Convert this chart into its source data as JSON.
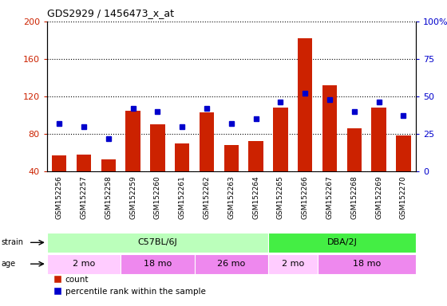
{
  "title": "GDS2929 / 1456473_x_at",
  "samples": [
    "GSM152256",
    "GSM152257",
    "GSM152258",
    "GSM152259",
    "GSM152260",
    "GSM152261",
    "GSM152262",
    "GSM152263",
    "GSM152264",
    "GSM152265",
    "GSM152266",
    "GSM152267",
    "GSM152268",
    "GSM152269",
    "GSM152270"
  ],
  "counts": [
    57,
    58,
    53,
    105,
    90,
    70,
    103,
    68,
    72,
    108,
    182,
    132,
    86,
    108,
    78
  ],
  "percentile_ranks": [
    32,
    30,
    22,
    42,
    40,
    30,
    42,
    32,
    35,
    46,
    52,
    48,
    40,
    46,
    37
  ],
  "ylim_left": [
    40,
    200
  ],
  "ylim_right": [
    0,
    100
  ],
  "yticks_left": [
    40,
    80,
    120,
    160,
    200
  ],
  "yticks_right": [
    0,
    25,
    50,
    75,
    100
  ],
  "bar_color": "#cc2200",
  "marker_color": "#0000cc",
  "strain_groups": [
    {
      "label": "C57BL/6J",
      "start": 0,
      "end": 9,
      "color": "#bbffbb"
    },
    {
      "label": "DBA/2J",
      "start": 9,
      "end": 15,
      "color": "#44ee44"
    }
  ],
  "age_groups": [
    {
      "label": "2 mo",
      "start": 0,
      "end": 3,
      "color": "#ffccff"
    },
    {
      "label": "18 mo",
      "start": 3,
      "end": 6,
      "color": "#ee88ee"
    },
    {
      "label": "26 mo",
      "start": 6,
      "end": 9,
      "color": "#ee88ee"
    },
    {
      "label": "2 mo",
      "start": 9,
      "end": 11,
      "color": "#ffccff"
    },
    {
      "label": "18 mo",
      "start": 11,
      "end": 15,
      "color": "#ee88ee"
    }
  ]
}
